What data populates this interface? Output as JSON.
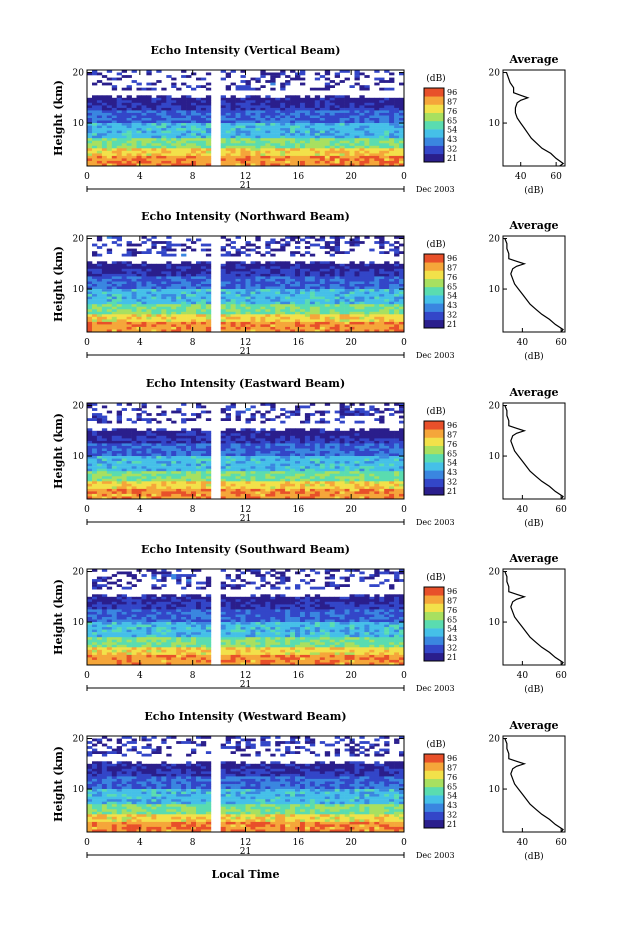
{
  "figure": {
    "xlabel": "Local Time",
    "date_label": "Dec 2003",
    "day_label": "21",
    "ylabel": "Height (km)",
    "colorbar_unit": "(dB)",
    "avg_title": "Average",
    "avg_xlabel": "(dB)"
  },
  "chart_data": [
    {
      "type": "heatmap",
      "title": "Echo Intensity (Vertical Beam)",
      "x_ticks": [
        "0",
        "4",
        "8",
        "12",
        "16",
        "20",
        "0"
      ],
      "y_ticks": [
        "10",
        "20"
      ],
      "xlim": [
        0,
        24
      ],
      "ylim": [
        1.5,
        20.5
      ],
      "colorbar_ticks": [
        "96",
        "87",
        "76",
        "65",
        "54",
        "43",
        "32",
        "21"
      ],
      "data_gap_hours": [
        9.5,
        10.1
      ],
      "average_profile": {
        "x_ticks": [
          "40",
          "60"
        ],
        "xlim": [
          30,
          65
        ],
        "y_ticks": [
          "10",
          "20"
        ],
        "height_km": [
          1.5,
          2,
          3,
          4,
          5,
          6,
          7,
          8,
          9,
          10,
          11,
          12,
          13,
          14,
          14.5,
          15,
          15.5,
          16,
          17,
          18,
          19,
          20
        ],
        "db": [
          62,
          64,
          60,
          57,
          52,
          49,
          46,
          44,
          42,
          40,
          38,
          37,
          37,
          38,
          40,
          44,
          40,
          36,
          36,
          34,
          33,
          32
        ]
      }
    },
    {
      "type": "heatmap",
      "title": "Echo Intensity (Northward Beam)",
      "x_ticks": [
        "0",
        "4",
        "8",
        "12",
        "16",
        "20",
        "0"
      ],
      "y_ticks": [
        "10",
        "20"
      ],
      "xlim": [
        0,
        24
      ],
      "ylim": [
        1.5,
        20.5
      ],
      "colorbar_ticks": [
        "96",
        "87",
        "76",
        "65",
        "54",
        "43",
        "32",
        "21"
      ],
      "data_gap_hours": [
        9.5,
        10.1
      ],
      "average_profile": {
        "x_ticks": [
          "40",
          "60"
        ],
        "xlim": [
          30,
          62
        ],
        "y_ticks": [
          "10",
          "20"
        ],
        "height_km": [
          1.5,
          2,
          3,
          4,
          5,
          6,
          7,
          8,
          9,
          10,
          11,
          12,
          13,
          14,
          14.5,
          15,
          15.5,
          16,
          17,
          18,
          19,
          20
        ],
        "db": [
          60,
          61,
          57,
          54,
          50,
          47,
          44,
          42,
          40,
          38,
          36,
          35,
          34,
          35,
          37,
          41,
          37,
          33,
          33,
          32,
          32,
          31
        ]
      }
    },
    {
      "type": "heatmap",
      "title": "Echo Intensity (Eastward Beam)",
      "x_ticks": [
        "0",
        "4",
        "8",
        "12",
        "16",
        "20",
        "0"
      ],
      "y_ticks": [
        "10",
        "20"
      ],
      "xlim": [
        0,
        24
      ],
      "ylim": [
        1.5,
        20.5
      ],
      "colorbar_ticks": [
        "96",
        "87",
        "76",
        "65",
        "54",
        "43",
        "32",
        "21"
      ],
      "data_gap_hours": [
        9.5,
        10.1
      ],
      "average_profile": {
        "x_ticks": [
          "40",
          "60"
        ],
        "xlim": [
          30,
          62
        ],
        "y_ticks": [
          "10",
          "20"
        ],
        "height_km": [
          1.5,
          2,
          3,
          4,
          5,
          6,
          7,
          8,
          9,
          10,
          11,
          12,
          13,
          14,
          14.5,
          15,
          15.5,
          16,
          17,
          18,
          19,
          20
        ],
        "db": [
          60,
          61,
          57,
          54,
          50,
          47,
          44,
          42,
          40,
          38,
          36,
          35,
          34,
          35,
          37,
          41,
          37,
          33,
          33,
          32,
          32,
          31
        ]
      }
    },
    {
      "type": "heatmap",
      "title": "Echo Intensity (Southward Beam)",
      "x_ticks": [
        "0",
        "4",
        "8",
        "12",
        "16",
        "20",
        "0"
      ],
      "y_ticks": [
        "10",
        "20"
      ],
      "xlim": [
        0,
        24
      ],
      "ylim": [
        1.5,
        20.5
      ],
      "colorbar_ticks": [
        "96",
        "87",
        "76",
        "65",
        "54",
        "43",
        "32",
        "21"
      ],
      "data_gap_hours": [
        9.5,
        10.1
      ],
      "average_profile": {
        "x_ticks": [
          "40",
          "60"
        ],
        "xlim": [
          30,
          62
        ],
        "y_ticks": [
          "10",
          "20"
        ],
        "height_km": [
          1.5,
          2,
          3,
          4,
          5,
          6,
          7,
          8,
          9,
          10,
          11,
          12,
          13,
          14,
          14.5,
          15,
          15.5,
          16,
          17,
          18,
          19,
          20
        ],
        "db": [
          60,
          61,
          57,
          54,
          50,
          47,
          44,
          42,
          40,
          38,
          36,
          35,
          34,
          35,
          37,
          41,
          37,
          33,
          33,
          32,
          32,
          31
        ]
      }
    },
    {
      "type": "heatmap",
      "title": "Echo Intensity (Westward Beam)",
      "x_ticks": [
        "0",
        "4",
        "8",
        "12",
        "16",
        "20",
        "0"
      ],
      "y_ticks": [
        "10",
        "20"
      ],
      "xlim": [
        0,
        24
      ],
      "ylim": [
        1.5,
        20.5
      ],
      "colorbar_ticks": [
        "96",
        "87",
        "76",
        "65",
        "54",
        "43",
        "32",
        "21"
      ],
      "data_gap_hours": [
        9.5,
        10.1
      ],
      "average_profile": {
        "x_ticks": [
          "40",
          "60"
        ],
        "xlim": [
          30,
          62
        ],
        "y_ticks": [
          "10",
          "20"
        ],
        "height_km": [
          1.5,
          2,
          3,
          4,
          5,
          6,
          7,
          8,
          9,
          10,
          11,
          12,
          13,
          14,
          14.5,
          15,
          15.5,
          16,
          17,
          18,
          19,
          20
        ],
        "db": [
          60,
          61,
          57,
          54,
          50,
          47,
          44,
          42,
          40,
          38,
          36,
          35,
          34,
          35,
          37,
          41,
          37,
          33,
          33,
          32,
          32,
          31
        ]
      }
    }
  ],
  "colormap": [
    "#2a1e8c",
    "#3346c8",
    "#3a86e0",
    "#45c0e8",
    "#5adcb0",
    "#a8e060",
    "#f2e14a",
    "#f5a63a",
    "#e8502a"
  ]
}
